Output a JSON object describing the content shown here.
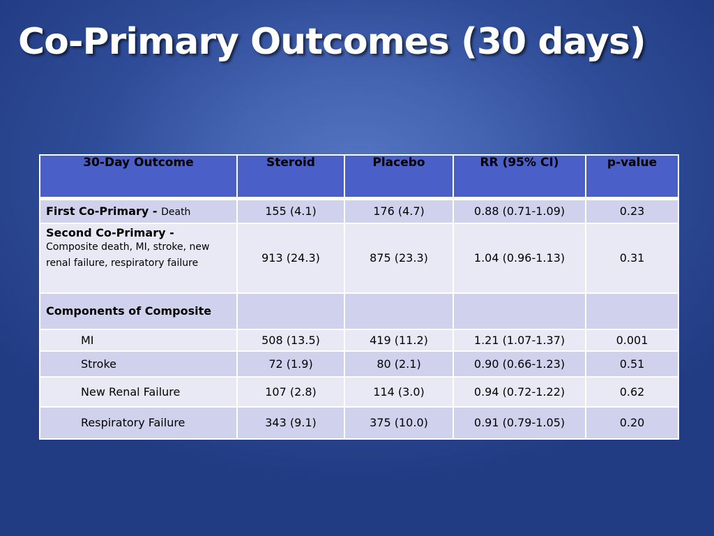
{
  "title": "Co-Primary Outcomes (30 days)",
  "table": {
    "headers": [
      "30-Day Outcome",
      "Steroid",
      "Placebo",
      "RR (95% CI)",
      "p-value"
    ],
    "rows": [
      {
        "label_bold": "First Co-Primary",
        "label_sep": " - ",
        "label_rest": "Death",
        "steroid": "155 (4.1)",
        "placebo": "176 (4.7)",
        "rr": "0.88 (0.71-1.09)",
        "p": "0.23"
      },
      {
        "label_bold": "Second Co-Primary",
        "label_sep": " -",
        "label_rest": "Composite death, MI, stroke, new renal failure, respiratory failure",
        "steroid": "913 (24.3)",
        "placebo": "875 (23.3)",
        "rr": "1.04 (0.96-1.13)",
        "p": "0.31"
      },
      {
        "label_bold": "Components of Composite"
      },
      {
        "label": "MI",
        "steroid": "508 (13.5)",
        "placebo": "419 (11.2)",
        "rr": "1.21 (1.07-1.37)",
        "p": "0.001"
      },
      {
        "label": "Stroke",
        "steroid": "72 (1.9)",
        "placebo": "80 (2.1)",
        "rr": "0.90 (0.66-1.23)",
        "p": "0.51"
      },
      {
        "label": "New Renal Failure",
        "steroid": "107 (2.8)",
        "placebo": "114 (3.0)",
        "rr": "0.94 (0.72-1.22)",
        "p": "0.62"
      },
      {
        "label": "Respiratory Failure",
        "steroid": "343 (9.1)",
        "placebo": "375 (10.0)",
        "rr": "0.91 (0.79-1.05)",
        "p": "0.20"
      }
    ]
  }
}
